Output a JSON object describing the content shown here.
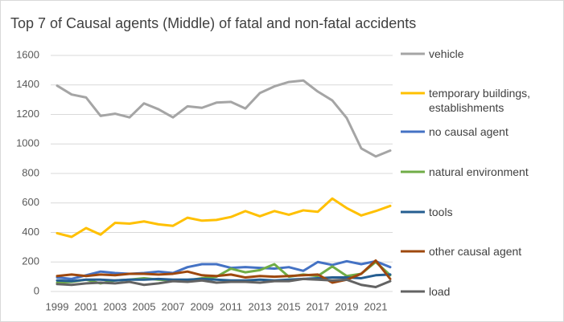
{
  "chart_data": {
    "type": "line",
    "title": "Top 7 of Causal agents (Middle) of fatal and non-fatal accidents",
    "x": [
      1999,
      2000,
      2001,
      2002,
      2003,
      2004,
      2005,
      2006,
      2007,
      2008,
      2009,
      2010,
      2011,
      2012,
      2013,
      2014,
      2015,
      2016,
      2017,
      2018,
      2019,
      2020,
      2021,
      2022
    ],
    "xlim": [
      1999,
      2022
    ],
    "xticks": [
      1999,
      2001,
      2003,
      2005,
      2007,
      2009,
      2011,
      2013,
      2015,
      2017,
      2019,
      2021
    ],
    "ylim": [
      0,
      1600
    ],
    "yticks": [
      0,
      200,
      400,
      600,
      800,
      1000,
      1200,
      1400,
      1600
    ],
    "grid": true,
    "legend": "right",
    "series": [
      {
        "name": "vehicle",
        "color": "#a5a5a5",
        "values": [
          1395,
          1335,
          1315,
          1190,
          1205,
          1180,
          1275,
          1235,
          1180,
          1255,
          1245,
          1280,
          1285,
          1240,
          1345,
          1390,
          1420,
          1430,
          1355,
          1295,
          1175,
          970,
          915,
          955
        ]
      },
      {
        "name": "temporary buildings, establishments",
        "color": "#ffc000",
        "values": [
          395,
          370,
          430,
          385,
          465,
          460,
          475,
          455,
          445,
          500,
          480,
          485,
          505,
          545,
          510,
          545,
          520,
          550,
          540,
          630,
          565,
          515,
          545,
          580
        ]
      },
      {
        "name": "no causal agent",
        "color": "#4472c4",
        "values": [
          95,
          85,
          110,
          135,
          125,
          120,
          125,
          135,
          125,
          165,
          185,
          185,
          160,
          165,
          160,
          155,
          165,
          140,
          200,
          180,
          205,
          185,
          205,
          165
        ]
      },
      {
        "name": "natural environment",
        "color": "#70ad47",
        "values": [
          60,
          65,
          80,
          55,
          75,
          80,
          90,
          80,
          75,
          75,
          90,
          100,
          155,
          130,
          145,
          185,
          100,
          115,
          105,
          170,
          105,
          120,
          200,
          110
        ]
      },
      {
        "name": "tools",
        "color": "#255e91",
        "values": [
          75,
          70,
          80,
          80,
          75,
          80,
          80,
          85,
          80,
          80,
          85,
          80,
          75,
          75,
          80,
          75,
          80,
          85,
          90,
          95,
          95,
          90,
          110,
          115
        ]
      },
      {
        "name": "other causal agent",
        "color": "#9e480e",
        "values": [
          105,
          115,
          105,
          115,
          110,
          120,
          120,
          115,
          120,
          135,
          110,
          105,
          115,
          95,
          105,
          100,
          105,
          110,
          115,
          60,
          80,
          120,
          210,
          85
        ]
      },
      {
        "name": "load",
        "color": "#636363",
        "values": [
          50,
          45,
          55,
          60,
          55,
          65,
          45,
          55,
          70,
          65,
          75,
          60,
          65,
          65,
          60,
          70,
          70,
          85,
          80,
          75,
          80,
          45,
          30,
          70
        ]
      }
    ]
  }
}
